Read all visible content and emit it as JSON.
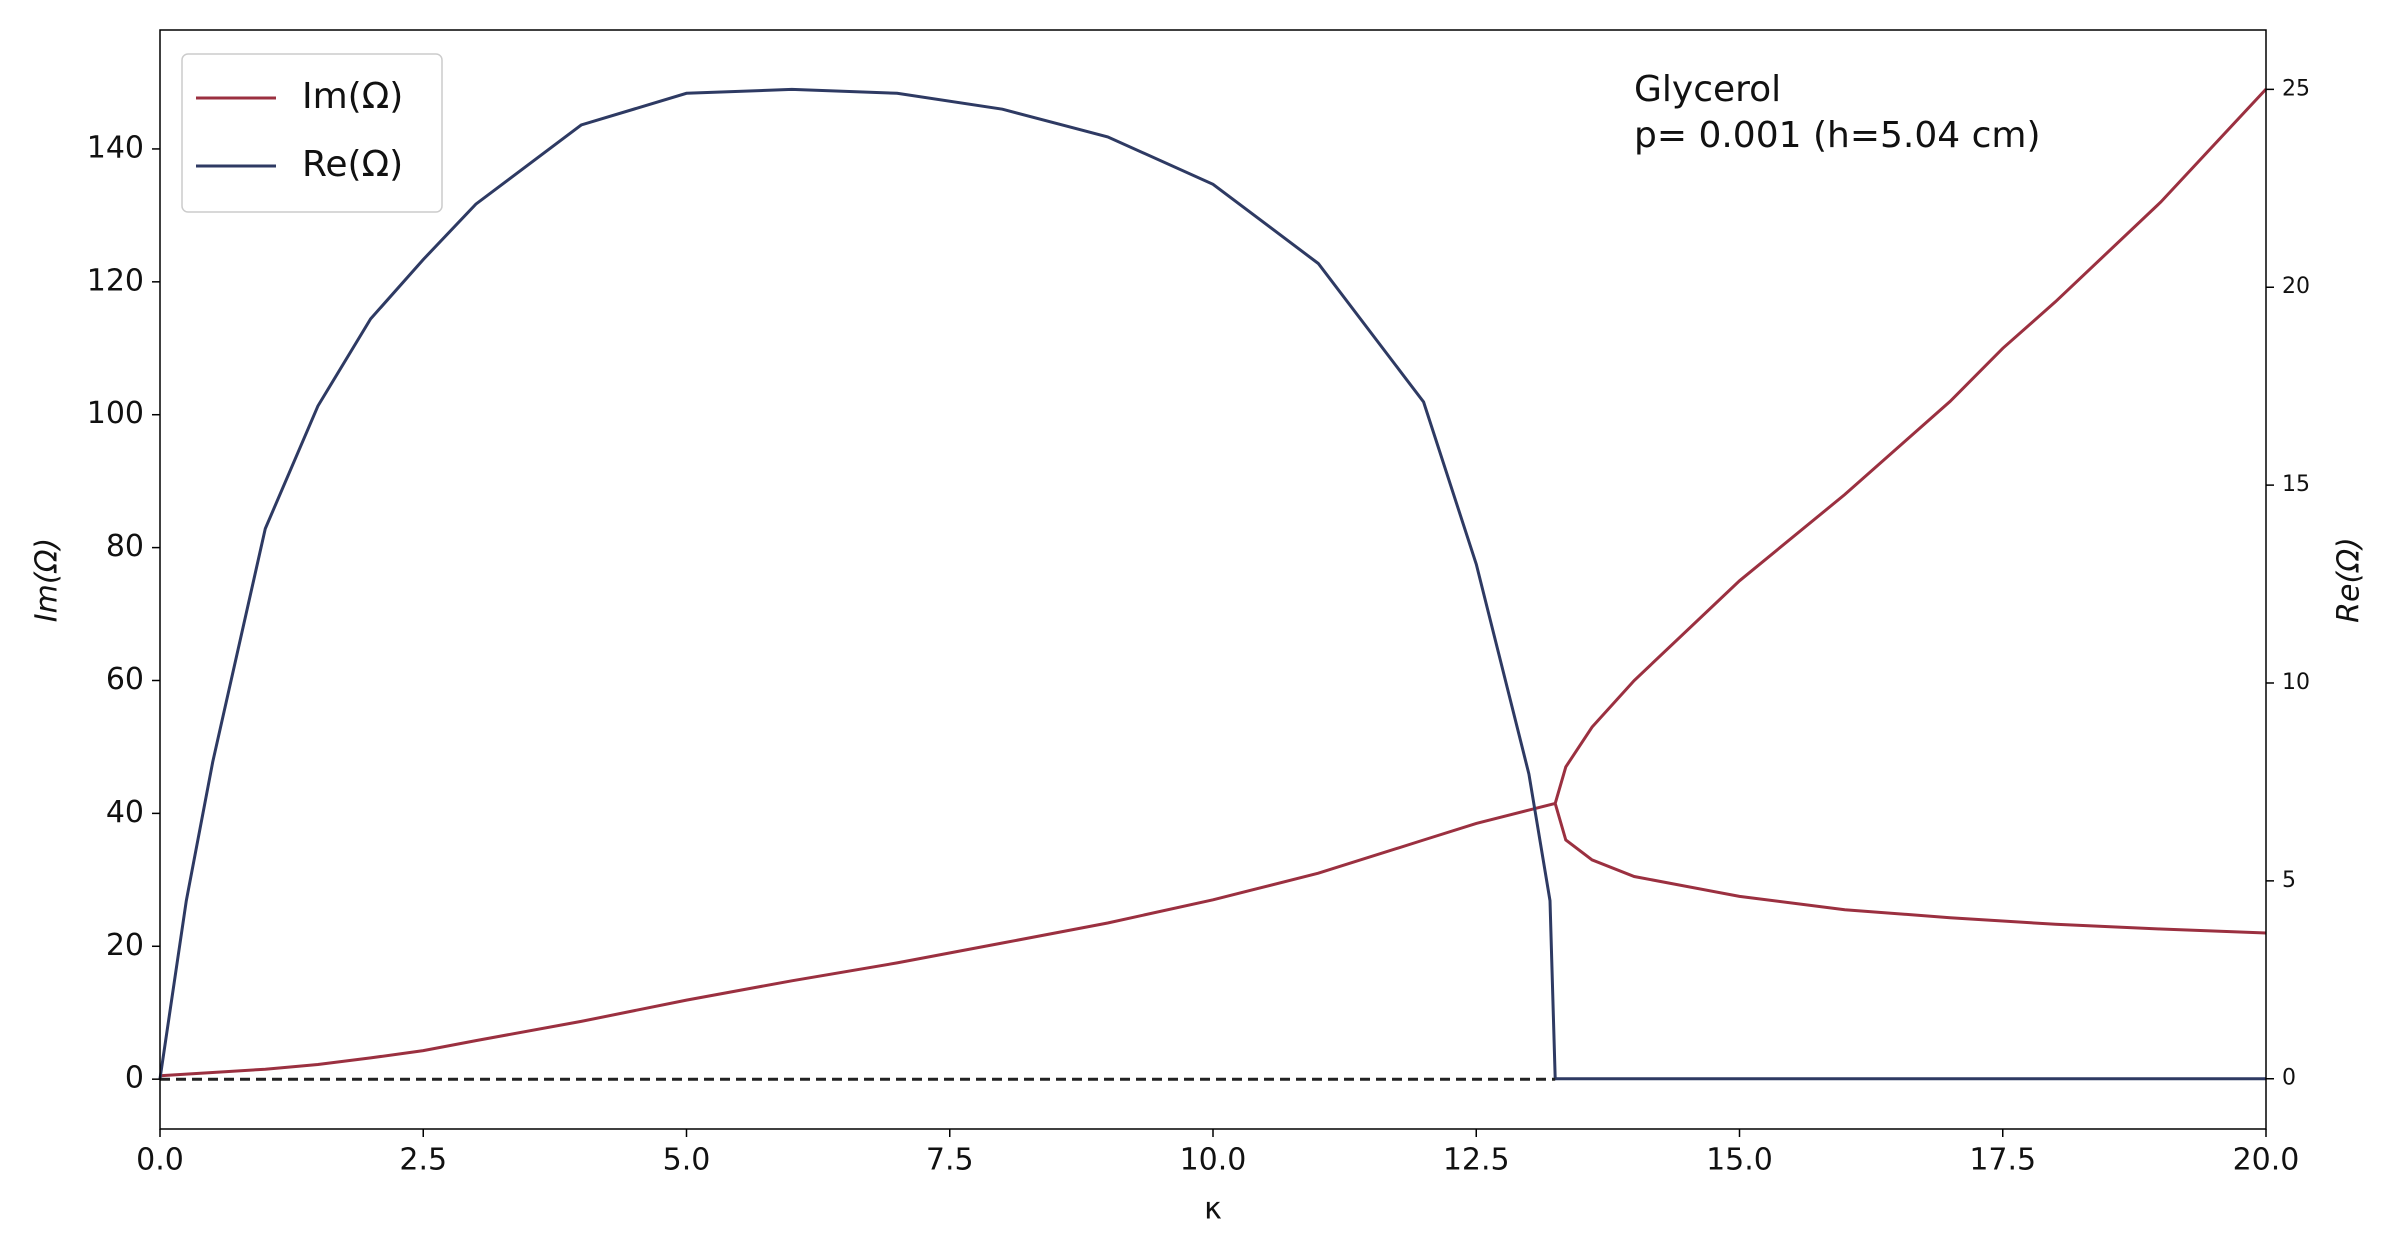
{
  "chart_data": {
    "type": "line",
    "annotations": [
      "Glycerol",
      "p= 0.001 (h=5.04 cm)"
    ],
    "x_label": "κ",
    "y_label": "Im(Ω)",
    "y2_label": "Re(Ω)",
    "legend": "upper left",
    "xlim": [
      0,
      20
    ],
    "xticks": [
      {
        "value": 0,
        "label": "0.0"
      },
      {
        "value": 2.5,
        "label": "2.5"
      },
      {
        "value": 5,
        "label": "5.0"
      },
      {
        "value": 7.5,
        "label": "7.5"
      },
      {
        "value": 10,
        "label": "10.0"
      },
      {
        "value": 12.5,
        "label": "12.5"
      },
      {
        "value": 15,
        "label": "15.0"
      },
      {
        "value": 17.5,
        "label": "17.5"
      },
      {
        "value": 20,
        "label": "20.0"
      }
    ],
    "ylim": [
      -7.5,
      157.9
    ],
    "yticks": [
      0,
      20,
      40,
      60,
      80,
      100,
      120,
      140
    ],
    "y2lim": [
      -1.27,
      26.5
    ],
    "y2ticks": [
      0,
      5,
      10,
      15,
      20,
      25
    ],
    "series": [
      {
        "name": "Im(Ω)",
        "color": "#9b3040",
        "x": [
          0,
          0.5,
          1,
          1.5,
          2,
          2.5,
          3,
          4,
          5,
          6,
          7,
          8,
          9,
          10,
          11,
          12,
          12.5,
          13,
          13.25,
          null,
          13.25,
          13.35,
          13.6,
          14,
          15,
          16,
          17,
          17.5,
          18,
          19,
          20,
          null,
          13.25,
          13.35,
          13.6,
          14,
          15,
          16,
          17,
          18,
          19,
          20
        ],
        "values": [
          0.5,
          1,
          1.5,
          2.2,
          3.2,
          4.3,
          5.8,
          8.7,
          11.9,
          14.8,
          17.5,
          20.5,
          23.5,
          27,
          31,
          36,
          38.5,
          40.5,
          41.5,
          null,
          41.5,
          47,
          53,
          60,
          75,
          88,
          102,
          110,
          117,
          132,
          149,
          null,
          41.5,
          36,
          33,
          30.5,
          27.5,
          25.5,
          24.3,
          23.3,
          22.6,
          22
        ]
      },
      {
        "name": "Re(Ω)",
        "color": "#2e3a63",
        "axis": "y2",
        "x": [
          0,
          0.25,
          0.5,
          1,
          1.5,
          2,
          2.5,
          3,
          4,
          5,
          6,
          7,
          8,
          9,
          10,
          11,
          12,
          12.5,
          13,
          13.2,
          13.25,
          20
        ],
        "values": [
          0,
          4.5,
          8,
          13.9,
          17,
          19.2,
          20.7,
          22.1,
          24.1,
          24.9,
          25,
          24.9,
          24.5,
          23.8,
          22.6,
          20.6,
          17.1,
          13,
          7.7,
          4.5,
          0,
          0
        ]
      },
      {
        "color": "#222222",
        "style": "dashed",
        "x": [
          0,
          13.25
        ],
        "values": [
          0,
          0
        ]
      }
    ]
  }
}
